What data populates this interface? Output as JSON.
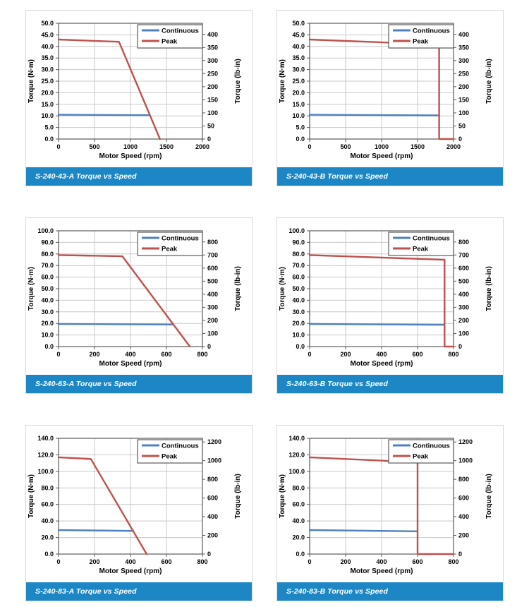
{
  "page": {
    "background": "#ffffff"
  },
  "shared": {
    "colors": {
      "continuous": "#4F81BD",
      "peak": "#C0504D",
      "banner": "#1D87C6",
      "banner_text": "#FFFFFF",
      "grid": "#c9c9c9",
      "frame": "#595959",
      "text": "#000000",
      "plot_bg": "#ffffff",
      "card_border": "#d9d9d9"
    },
    "legend": {
      "entries": [
        "Continuous",
        "Peak"
      ],
      "position": "top-right"
    },
    "lb_in_per_Nm": 8.8507
  },
  "chart_data": [
    {
      "type": "line",
      "title": "S-240-43-A Torque vs Speed",
      "xlabel": "Motor Speed (rpm)",
      "ylabel_left": "Torque (N·m)",
      "ylabel_right": "Torque (lb-in)",
      "x": {
        "min": 0,
        "max": 2000,
        "ticks": [
          0,
          500,
          1000,
          1500,
          2000
        ]
      },
      "y_left": {
        "min": 0,
        "max": 50,
        "ticks": [
          0,
          5,
          10,
          15,
          20,
          25,
          30,
          35,
          40,
          45,
          50
        ],
        "decimals": 1
      },
      "y_right": {
        "ticks": [
          0,
          50,
          100,
          150,
          200,
          250,
          300,
          350,
          400
        ]
      },
      "grid": true,
      "series": [
        {
          "name": "Continuous",
          "color": "#4F81BD",
          "points": [
            [
              0,
              10.5
            ],
            [
              1265,
              10.3
            ]
          ]
        },
        {
          "name": "Peak",
          "color": "#C0504D",
          "points": [
            [
              0,
              43
            ],
            [
              840,
              42
            ],
            [
              1410,
              0
            ]
          ]
        }
      ]
    },
    {
      "type": "line",
      "title": "S-240-43-B Torque vs Speed",
      "xlabel": "Motor Speed (rpm)",
      "ylabel_left": "Torque (N·m)",
      "ylabel_right": "Torque (lb-in)",
      "x": {
        "min": 0,
        "max": 2000,
        "ticks": [
          0,
          500,
          1000,
          1500,
          2000
        ]
      },
      "y_left": {
        "min": 0,
        "max": 50,
        "ticks": [
          0,
          5,
          10,
          15,
          20,
          25,
          30,
          35,
          40,
          45,
          50
        ],
        "decimals": 1
      },
      "y_right": {
        "ticks": [
          0,
          50,
          100,
          150,
          200,
          250,
          300,
          350,
          400
        ]
      },
      "grid": true,
      "series": [
        {
          "name": "Continuous",
          "color": "#4F81BD",
          "points": [
            [
              0,
              10.5
            ],
            [
              1800,
              10.2
            ]
          ]
        },
        {
          "name": "Peak",
          "color": "#C0504D",
          "points": [
            [
              0,
              43
            ],
            [
              1800,
              40.8
            ],
            [
              1800,
              0
            ],
            [
              2000,
              0
            ]
          ]
        }
      ]
    },
    {
      "type": "line",
      "title": "S-240-63-A Torque vs Speed",
      "xlabel": "Motor Speed (rpm)",
      "ylabel_left": "Torque (N·m)",
      "ylabel_right": "Torque (lb-in)",
      "x": {
        "min": 0,
        "max": 800,
        "ticks": [
          0,
          200,
          400,
          600,
          800
        ]
      },
      "y_left": {
        "min": 0,
        "max": 100,
        "ticks": [
          0,
          10,
          20,
          30,
          40,
          50,
          60,
          70,
          80,
          90,
          100
        ],
        "decimals": 1
      },
      "y_right": {
        "ticks": [
          0,
          100,
          200,
          300,
          400,
          500,
          600,
          700,
          800
        ]
      },
      "grid": true,
      "series": [
        {
          "name": "Continuous",
          "color": "#4F81BD",
          "points": [
            [
              0,
              19.5
            ],
            [
              637,
              19.0
            ]
          ]
        },
        {
          "name": "Peak",
          "color": "#C0504D",
          "points": [
            [
              0,
              79
            ],
            [
              355,
              78
            ],
            [
              730,
              0
            ]
          ]
        }
      ]
    },
    {
      "type": "line",
      "title": "S-240-63-B Torque vs Speed",
      "xlabel": "Motor Speed (rpm)",
      "ylabel_left": "Torque (N·m)",
      "ylabel_right": "Torque (lb-in)",
      "x": {
        "min": 0,
        "max": 800,
        "ticks": [
          0,
          200,
          400,
          600,
          800
        ]
      },
      "y_left": {
        "min": 0,
        "max": 100,
        "ticks": [
          0,
          10,
          20,
          30,
          40,
          50,
          60,
          70,
          80,
          90,
          100
        ],
        "decimals": 1
      },
      "y_right": {
        "ticks": [
          0,
          100,
          200,
          300,
          400,
          500,
          600,
          700,
          800
        ]
      },
      "grid": true,
      "series": [
        {
          "name": "Continuous",
          "color": "#4F81BD",
          "points": [
            [
              0,
              19.5
            ],
            [
              745,
              18.8
            ]
          ]
        },
        {
          "name": "Peak",
          "color": "#C0504D",
          "points": [
            [
              0,
              79
            ],
            [
              750,
              75
            ],
            [
              750,
              0
            ],
            [
              800,
              0
            ]
          ]
        }
      ]
    },
    {
      "type": "line",
      "title": "S-240-83-A Torque vs Speed",
      "xlabel": "Motor Speed (rpm)",
      "ylabel_left": "Torque (N·m)",
      "ylabel_right": "Torque (lb-in)",
      "x": {
        "min": 0,
        "max": 800,
        "ticks": [
          0,
          200,
          400,
          600,
          800
        ]
      },
      "y_left": {
        "min": 0,
        "max": 140,
        "ticks": [
          0,
          20,
          40,
          60,
          80,
          100,
          120,
          140
        ],
        "decimals": 1
      },
      "y_right": {
        "ticks": [
          0,
          200,
          400,
          600,
          800,
          1000,
          1200
        ]
      },
      "grid": true,
      "series": [
        {
          "name": "Continuous",
          "color": "#4F81BD",
          "points": [
            [
              0,
              29
            ],
            [
              415,
              28
            ]
          ]
        },
        {
          "name": "Peak",
          "color": "#C0504D",
          "points": [
            [
              0,
              117
            ],
            [
              180,
              115
            ],
            [
              490,
              0
            ]
          ]
        }
      ]
    },
    {
      "type": "line",
      "title": "S-240-83-B Torque vs Speed",
      "xlabel": "Motor Speed (rpm)",
      "ylabel_left": "Torque (N·m)",
      "ylabel_right": "Torque (lb-in)",
      "x": {
        "min": 0,
        "max": 800,
        "ticks": [
          0,
          200,
          400,
          600,
          800
        ]
      },
      "y_left": {
        "min": 0,
        "max": 140,
        "ticks": [
          0,
          20,
          40,
          60,
          80,
          100,
          120,
          140
        ],
        "decimals": 1
      },
      "y_right": {
        "ticks": [
          0,
          200,
          400,
          600,
          800,
          1000,
          1200
        ]
      },
      "grid": true,
      "series": [
        {
          "name": "Continuous",
          "color": "#4F81BD",
          "points": [
            [
              0,
              29
            ],
            [
              600,
              27.5
            ]
          ]
        },
        {
          "name": "Peak",
          "color": "#C0504D",
          "points": [
            [
              0,
              117
            ],
            [
              600,
              111
            ],
            [
              600,
              0
            ],
            [
              800,
              0
            ]
          ]
        }
      ]
    }
  ]
}
